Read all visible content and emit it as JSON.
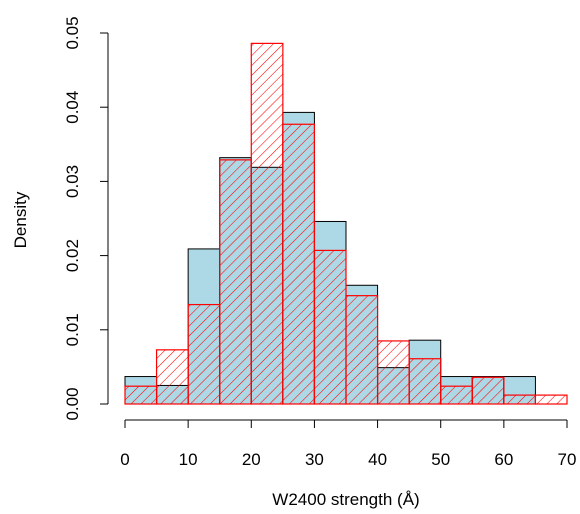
{
  "chart_data": {
    "type": "bar",
    "subtype": "overlaid-histogram",
    "xlabel": "W2400 strength (Å)",
    "ylabel": "Density",
    "xlim": [
      0,
      70
    ],
    "ylim": [
      0,
      0.05
    ],
    "x_ticks": [
      "0",
      "10",
      "20",
      "30",
      "40",
      "50",
      "60",
      "70"
    ],
    "y_ticks": [
      "0.00",
      "0.01",
      "0.02",
      "0.03",
      "0.04",
      "0.05"
    ],
    "grid": false,
    "legend": "none",
    "bin_edges": [
      0,
      5,
      10,
      15,
      20,
      25,
      30,
      35,
      40,
      45,
      50,
      55,
      60,
      65,
      70
    ],
    "series": [
      {
        "style": "solid-fill",
        "fill": "#add8e6",
        "stroke": "#000000",
        "values": [
          0.0037,
          0.0025,
          0.0209,
          0.0332,
          0.0319,
          0.0393,
          0.0246,
          0.016,
          0.0049,
          0.0086,
          0.0037,
          0.0037,
          0.0037,
          0.0
        ]
      },
      {
        "style": "hatched",
        "fill": "none",
        "stroke": "#ff0000",
        "values": [
          0.0024,
          0.0073,
          0.0134,
          0.0329,
          0.0486,
          0.0377,
          0.0207,
          0.0146,
          0.0085,
          0.0061,
          0.0024,
          0.0036,
          0.0012,
          0.0012
        ]
      }
    ]
  }
}
